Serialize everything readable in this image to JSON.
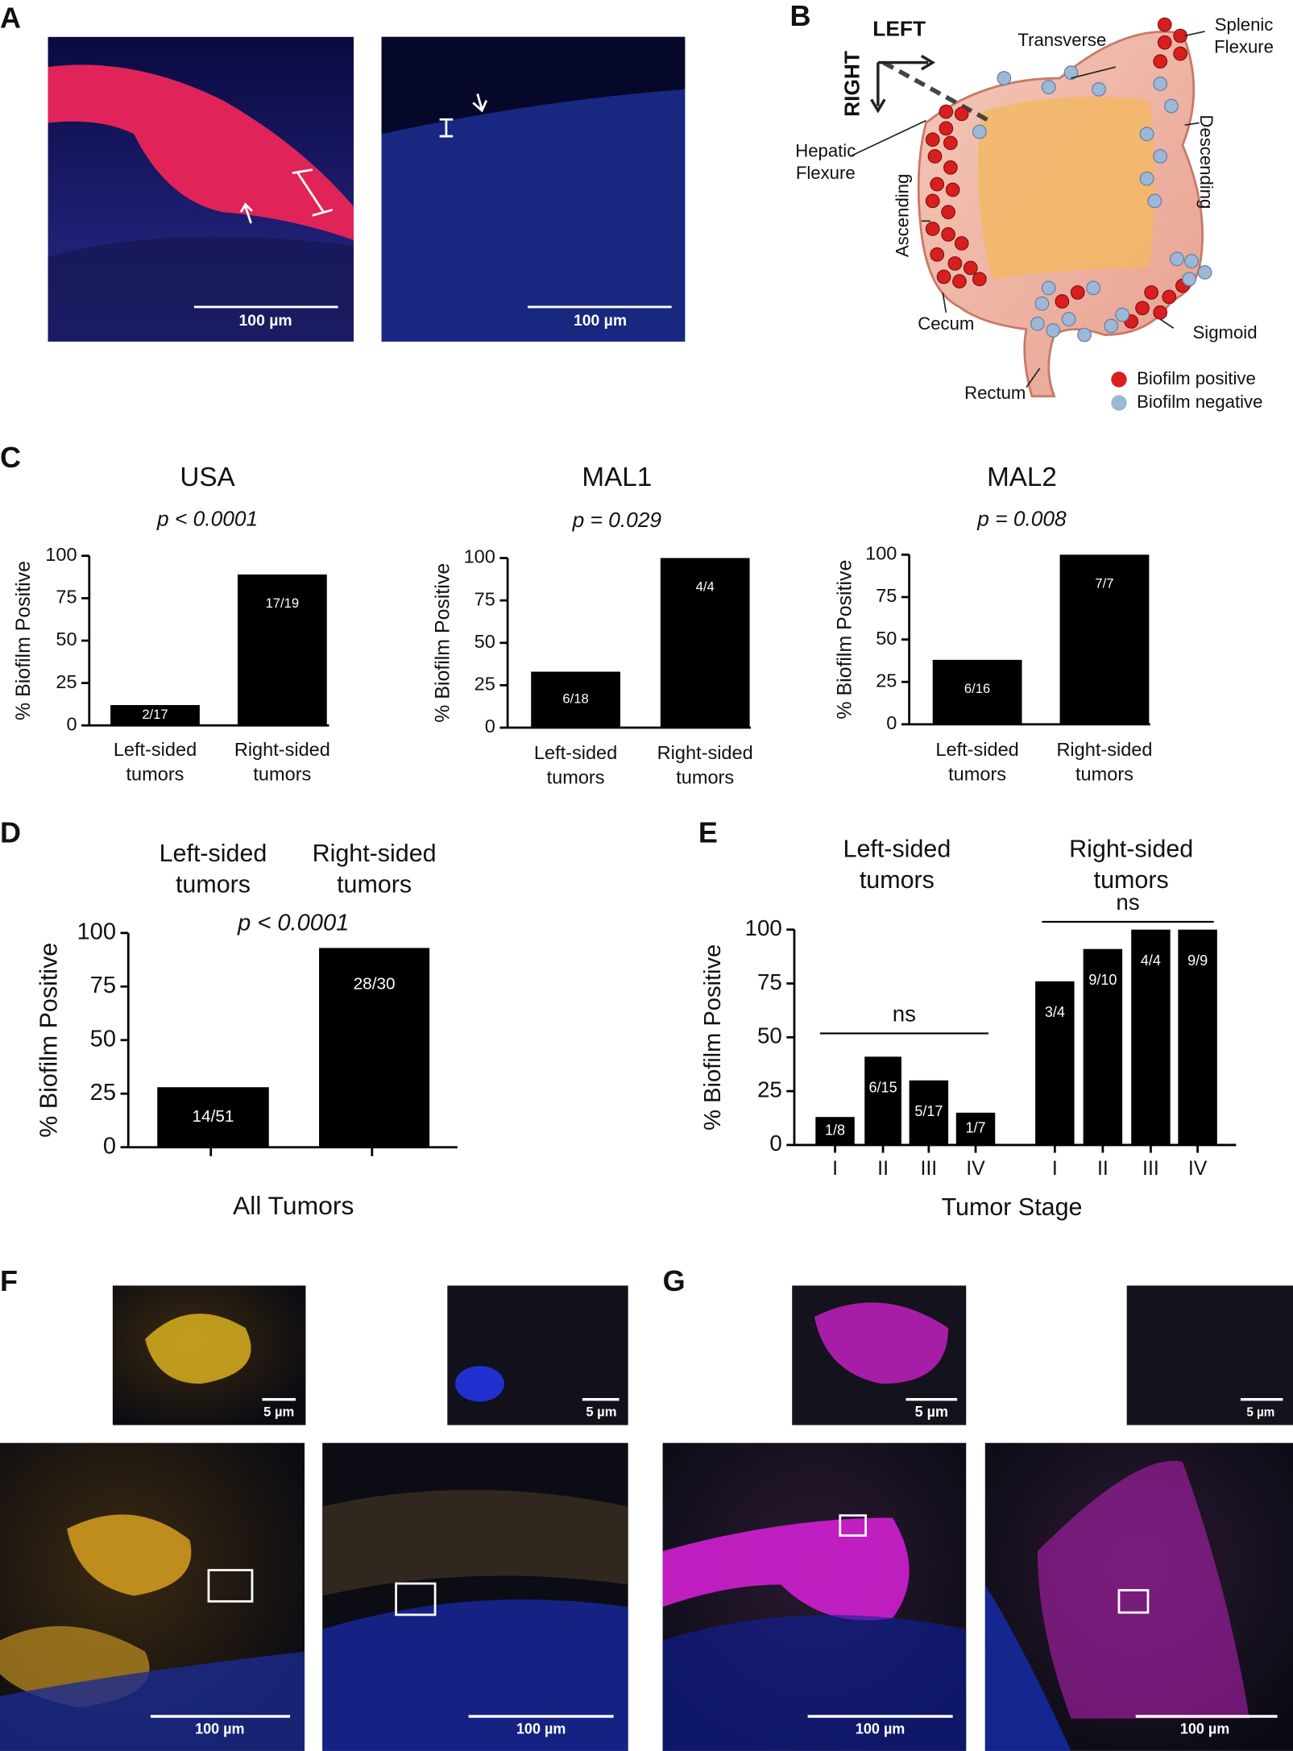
{
  "panel_labels": [
    "A",
    "B",
    "C",
    "D",
    "E",
    "F",
    "G"
  ],
  "diagram": {
    "labels": [
      "LEFT",
      "RIGHT",
      "Transverse",
      "Splenic Flexure",
      "Hepatic Flexure",
      "Descending",
      "Ascending",
      "Cecum",
      "Sigmoid",
      "Rectum"
    ],
    "legend": [
      {
        "name": "Biofilm positive",
        "color": "#d81e1e"
      },
      {
        "name": "Biofilm negative",
        "color": "#9db7d6"
      }
    ]
  },
  "scale_bars": [
    "100 µm",
    "100 µm",
    "5 µm",
    "5 µm",
    "100 µm",
    "100 µm",
    "5 µm",
    "5 µm",
    "100 µm",
    "100 µm"
  ],
  "chart_data": [
    {
      "type": "bar",
      "title": "USA",
      "annotation": "p < 0.0001",
      "ylabel": "% Biofilm Positive",
      "categories": [
        "Left-sided tumors",
        "Right-sided tumors"
      ],
      "values": [
        12,
        89
      ],
      "value_labels": [
        "2/17",
        "17/19"
      ],
      "color": "#000000",
      "ylim": [
        0,
        100
      ],
      "yticks": [
        0,
        25,
        50,
        75,
        100
      ]
    },
    {
      "type": "bar",
      "title": "MAL1",
      "annotation": "p = 0.029",
      "ylabel": "% Biofilm Positive",
      "categories": [
        "Left-sided tumors",
        "Right-sided tumors"
      ],
      "values": [
        33,
        100
      ],
      "value_labels": [
        "6/18",
        "4/4"
      ],
      "color": "#000000",
      "ylim": [
        0,
        100
      ],
      "yticks": [
        0,
        25,
        50,
        75,
        100
      ]
    },
    {
      "type": "bar",
      "title": "MAL2",
      "annotation": "p = 0.008",
      "ylabel": "% Biofilm Positive",
      "categories": [
        "Left-sided tumors",
        "Right-sided tumors"
      ],
      "values": [
        38,
        100
      ],
      "value_labels": [
        "6/16",
        "7/7"
      ],
      "color": "#000000",
      "ylim": [
        0,
        100
      ],
      "yticks": [
        0,
        25,
        50,
        75,
        100
      ]
    },
    {
      "type": "bar",
      "annotation": "p < 0.0001",
      "ylabel": "% Biofilm Positive",
      "xlabel": "All Tumors",
      "categories": [
        "Left-sided tumors",
        "Right-sided tumors"
      ],
      "values": [
        28,
        93
      ],
      "value_labels": [
        "14/51",
        "28/30"
      ],
      "color": "#000000",
      "ylim": [
        0,
        100
      ],
      "yticks": [
        0,
        25,
        50,
        75,
        100
      ]
    },
    {
      "type": "bar",
      "ylabel": "% Biofilm Positive",
      "xlabel": "Tumor Stage",
      "group_labels": [
        "Left-sided tumors",
        "Right-sided tumors"
      ],
      "annotations": [
        "ns",
        "ns"
      ],
      "categories": [
        "I",
        "II",
        "III",
        "IV",
        "I",
        "II",
        "III",
        "IV"
      ],
      "values": [
        13,
        41,
        30,
        15,
        76,
        91,
        100,
        100
      ],
      "value_labels": [
        "1/8",
        "6/15",
        "5/17",
        "1/7",
        "3/4",
        "9/10",
        "4/4",
        "9/9"
      ],
      "color": "#000000",
      "ylim": [
        0,
        100
      ],
      "yticks": [
        0,
        25,
        50,
        75,
        100
      ]
    }
  ]
}
